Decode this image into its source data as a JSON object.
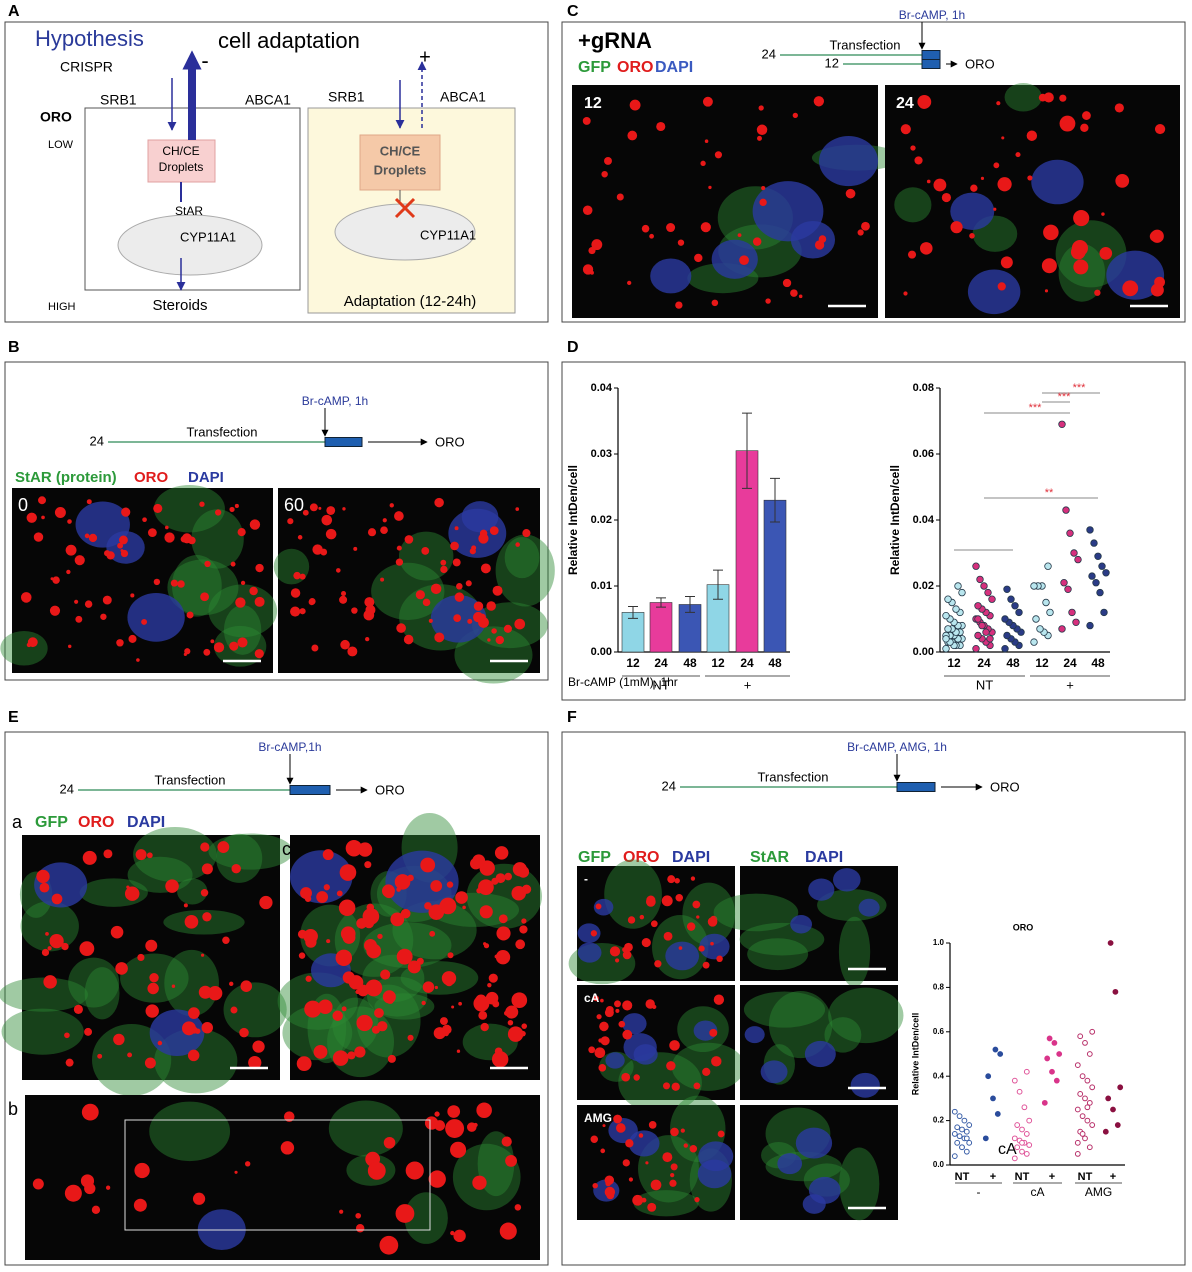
{
  "a": {
    "label": "A",
    "hypothesis": "Hypothesis",
    "title": "cell adaptation",
    "crispr": "CRISPR",
    "oro": "ORO",
    "low": "LOW",
    "high": "HIGH",
    "left": {
      "sign": "-",
      "srb1": "SRB1",
      "abca1": "ABCA1",
      "droplets": [
        "CH/CE",
        "Droplets"
      ],
      "star": "StAR",
      "cyp": "CYP11A1",
      "output": "Steroids"
    },
    "right": {
      "sign": "+",
      "srb1": "SRB1",
      "abca1": "ABCA1",
      "droplets": [
        "CH/CE",
        "Droplets"
      ],
      "cyp": "CYP11A1",
      "caption": "Adaptation (12-24h)"
    }
  },
  "b": {
    "label": "B",
    "timeline": {
      "start": "24",
      "stage": "Transfection",
      "treatment": "Br-cAMP, 1h",
      "readout": "ORO"
    },
    "stain": [
      "StAR (protein)",
      "ORO",
      "DAPI"
    ],
    "images": [
      "0",
      "60"
    ]
  },
  "c": {
    "label": "C",
    "title": "+gRNA",
    "stain": [
      "GFP",
      "ORO",
      "DAPI"
    ],
    "timeline": {
      "starts": [
        "24",
        "12"
      ],
      "stage": "Transfection",
      "treatment": "Br-cAMP, 1h",
      "readout": "ORO"
    },
    "images": [
      "12",
      "24"
    ]
  },
  "d": {
    "label": "D",
    "bar": {
      "type": "bar",
      "ylabel": "Relative IntDen/cell",
      "xlabel": "Br-cAMP (1mM), 1hr",
      "categories": [
        "12",
        "24",
        "48",
        "12",
        "24",
        "48"
      ],
      "groups": [
        "NT",
        "+"
      ],
      "values": [
        0.006,
        0.0075,
        0.0072,
        0.0102,
        0.0305,
        0.023
      ],
      "errors": [
        0.0009,
        0.0007,
        0.0012,
        0.0022,
        0.0057,
        0.0033
      ],
      "colors": [
        "#8fd6e6",
        "#e83b9b",
        "#3b56b4",
        "#8fd6e6",
        "#e83b9b",
        "#3b56b4"
      ],
      "ylim": [
        0,
        0.04
      ],
      "yticks": [
        {
          "value": 0,
          "label": "0.00"
        },
        0.01,
        0.02,
        0.03,
        0.04
      ]
    },
    "dots": {
      "type": "scatter",
      "ylabel": "Relative IntDen/cell",
      "categories": [
        "12",
        "24",
        "48",
        "12",
        "24",
        "48"
      ],
      "groups": [
        "NT",
        "+"
      ],
      "values": [
        [
          0.001,
          0.002,
          0.002,
          0.003,
          0.003,
          0.004,
          0.004,
          0.005,
          0.005,
          0.005,
          0.006,
          0.006,
          0.007,
          0.007,
          0.008,
          0.008,
          0.009,
          0.01,
          0.011,
          0.012,
          0.013,
          0.015,
          0.016,
          0.018,
          0.02,
          0.002,
          0.003,
          0.004
        ],
        [
          0.001,
          0.002,
          0.003,
          0.004,
          0.005,
          0.006,
          0.007,
          0.008,
          0.009,
          0.01,
          0.011,
          0.012,
          0.013,
          0.014,
          0.016,
          0.018,
          0.02,
          0.022,
          0.026,
          0.004,
          0.006,
          0.008,
          0.01
        ],
        [
          0.001,
          0.002,
          0.003,
          0.004,
          0.005,
          0.006,
          0.007,
          0.008,
          0.009,
          0.01,
          0.012,
          0.014,
          0.016,
          0.019
        ],
        [
          0.003,
          0.005,
          0.006,
          0.007,
          0.01,
          0.012,
          0.015,
          0.02,
          0.02,
          0.02,
          0.026
        ],
        [
          0.007,
          0.009,
          0.012,
          0.019,
          0.021,
          0.028,
          0.03,
          0.036,
          0.043,
          0.069
        ],
        [
          0.008,
          0.012,
          0.018,
          0.021,
          0.023,
          0.024,
          0.026,
          0.029,
          0.033,
          0.037
        ]
      ],
      "colors": [
        "#b9e6ee",
        "#d6307d",
        "#2a3b86",
        "#b9e6ee",
        "#d6307d",
        "#2a3b86"
      ],
      "ylim": [
        0,
        0.08
      ],
      "yticks": [
        {
          "value": 0,
          "label": "0.00"
        },
        0.02,
        0.04,
        0.06,
        0.08
      ],
      "significance": [
        "***",
        "***",
        "***",
        "**"
      ]
    }
  },
  "e": {
    "label": "E",
    "timeline": {
      "start": "24",
      "stage": "Transfection",
      "treatment": "Br-cAMP,1h",
      "readout": "ORO"
    },
    "subpanels": [
      "a",
      "b",
      "c"
    ],
    "stain": [
      "GFP",
      "ORO",
      "DAPI"
    ]
  },
  "f": {
    "label": "F",
    "timeline": {
      "start": "24",
      "stage": "Transfection",
      "treatment": "Br-cAMP, AMG, 1h",
      "readout": "ORO"
    },
    "stains": [
      [
        "GFP",
        "ORO",
        "DAPI"
      ],
      [
        "StAR",
        "DAPI"
      ]
    ],
    "rows": [
      "-",
      "cA",
      "AMG"
    ],
    "chart": {
      "type": "scatter",
      "title": "ORO",
      "ylabel": "Relative IntDen/cell",
      "annotation": "cA",
      "categories": [
        "NT",
        "+",
        "NT",
        "+",
        "NT",
        "+"
      ],
      "groups": [
        "-",
        "cA",
        "AMG"
      ],
      "values": [
        [
          0.04,
          0.06,
          0.08,
          0.1,
          0.1,
          0.12,
          0.13,
          0.14,
          0.15,
          0.16,
          0.17,
          0.18,
          0.2,
          0.22,
          0.24,
          0.12,
          0.08
        ],
        [
          0.12,
          0.23,
          0.3,
          0.4,
          0.5,
          0.52
        ],
        [
          0.03,
          0.05,
          0.06,
          0.08,
          0.09,
          0.1,
          0.11,
          0.12,
          0.14,
          0.16,
          0.18,
          0.2,
          0.26,
          0.33,
          0.38,
          0.42,
          0.1
        ],
        [
          0.28,
          0.38,
          0.42,
          0.48,
          0.5,
          0.55,
          0.57
        ],
        [
          0.05,
          0.08,
          0.12,
          0.15,
          0.18,
          0.2,
          0.22,
          0.25,
          0.28,
          0.3,
          0.32,
          0.35,
          0.38,
          0.4,
          0.45,
          0.5,
          0.55,
          0.58,
          0.6,
          0.26,
          0.14,
          0.1
        ],
        [
          0.15,
          0.18,
          0.25,
          0.3,
          0.35,
          0.78,
          1.0
        ]
      ],
      "colors": [
        "#3a5fa8",
        "#2a4c9c",
        "#e0559a",
        "#d9348a",
        "#b8306a",
        "#8a1040"
      ],
      "filled": [
        false,
        true,
        false,
        true,
        false,
        true
      ],
      "ylim": [
        0,
        1
      ],
      "yticks": [
        {
          "value": 0,
          "label": "0.0"
        },
        0.2,
        0.4,
        0.6,
        0.8,
        {
          "value": 1,
          "label": "1.0"
        }
      ]
    }
  }
}
